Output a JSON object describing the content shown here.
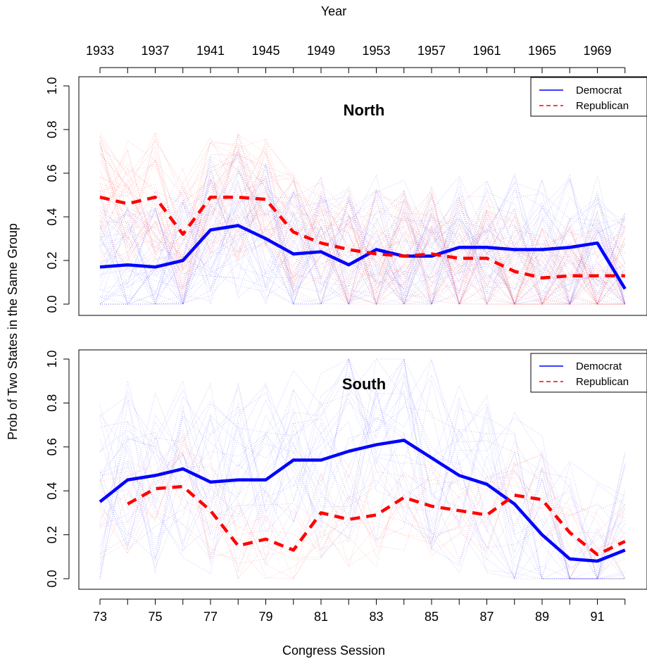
{
  "figure": {
    "top_axis_label": "Year",
    "bottom_axis_label": "Congress Session",
    "y_axis_label": "Prob of Two States in the Same Group"
  },
  "colors": {
    "democrat": "#0000ff",
    "republican": "#ff0000"
  },
  "chart_data": [
    {
      "type": "line",
      "title": "North",
      "x_axis": "Congress Session",
      "x_ticks": [
        73,
        75,
        77,
        79,
        81,
        83,
        85,
        87,
        89,
        91
      ],
      "x_range": [
        73,
        92
      ],
      "top_axis": {
        "label": "Year",
        "tick_sessions": [
          73,
          75,
          77,
          79,
          81,
          83,
          85,
          87,
          89,
          91
        ],
        "tick_labels": [
          "1933",
          "1937",
          "1941",
          "1945",
          "1949",
          "1953",
          "1957",
          "1961",
          "1965",
          "1969"
        ]
      },
      "ylabel": "Prob of Two States in the Same Group",
      "ylim": [
        0,
        1
      ],
      "y_ticks": [
        "0.0",
        "0.2",
        "0.4",
        "0.6",
        "0.8",
        "1.0"
      ],
      "legend": {
        "position": "top-right",
        "entries": [
          "Democrat",
          "Republican"
        ]
      },
      "x": [
        73,
        74,
        75,
        76,
        77,
        78,
        79,
        80,
        81,
        82,
        83,
        84,
        85,
        86,
        87,
        88,
        89,
        90,
        91,
        92
      ],
      "series": [
        {
          "name": "Democrat",
          "style": "solid",
          "color": "#0000ff",
          "values": [
            0.17,
            0.18,
            0.17,
            0.2,
            0.34,
            0.36,
            0.3,
            0.23,
            0.24,
            0.18,
            0.25,
            0.22,
            0.22,
            0.26,
            0.26,
            0.25,
            0.25,
            0.26,
            0.28,
            0.07
          ]
        },
        {
          "name": "Republican",
          "style": "dashed",
          "color": "#ff0000",
          "values": [
            0.49,
            0.46,
            0.49,
            0.32,
            0.49,
            0.49,
            0.48,
            0.33,
            0.28,
            0.25,
            0.23,
            0.22,
            0.23,
            0.21,
            0.21,
            0.15,
            0.12,
            0.13,
            0.13,
            0.13
          ]
        }
      ]
    },
    {
      "type": "line",
      "title": "South",
      "x_axis": "Congress Session",
      "x_ticks": [
        73,
        75,
        77,
        79,
        81,
        83,
        85,
        87,
        89,
        91
      ],
      "x_range": [
        73,
        92
      ],
      "ylabel": "Prob of Two States in the Same Group",
      "ylim": [
        0,
        1
      ],
      "y_ticks": [
        "0.0",
        "0.2",
        "0.4",
        "0.6",
        "0.8",
        "1.0"
      ],
      "legend": {
        "position": "top-right",
        "entries": [
          "Democrat",
          "Republican"
        ]
      },
      "x": [
        73,
        74,
        75,
        76,
        77,
        78,
        79,
        80,
        81,
        82,
        83,
        84,
        85,
        86,
        87,
        88,
        89,
        90,
        91,
        92
      ],
      "series": [
        {
          "name": "Democrat",
          "style": "solid",
          "color": "#0000ff",
          "values": [
            0.35,
            0.45,
            0.47,
            0.5,
            0.44,
            0.45,
            0.45,
            0.54,
            0.54,
            0.58,
            0.61,
            0.63,
            0.55,
            0.47,
            0.43,
            0.34,
            0.2,
            0.09,
            0.08,
            0.13
          ]
        },
        {
          "name": "Republican",
          "style": "dashed",
          "color": "#ff0000",
          "values": [
            null,
            0.34,
            0.41,
            0.42,
            0.31,
            0.15,
            0.18,
            0.13,
            0.3,
            0.27,
            0.29,
            0.37,
            0.33,
            0.31,
            0.29,
            0.38,
            0.36,
            0.21,
            0.11,
            0.17
          ]
        }
      ]
    }
  ]
}
